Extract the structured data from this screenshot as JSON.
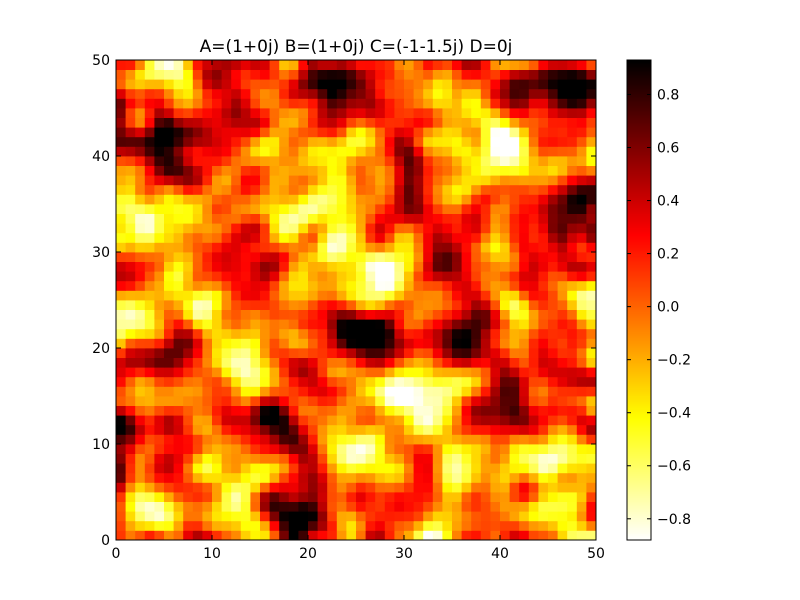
{
  "chart_data": {
    "type": "heatmap",
    "title": "A=(1+0j)  B=(1+0j)  C=(-1-1.5j)  D=0j",
    "xlabel": "",
    "ylabel": "",
    "xlim": [
      0,
      50
    ],
    "ylim": [
      0,
      50
    ],
    "grid_size": [
      50,
      50
    ],
    "colormap": "hot_r",
    "colorbar_range": [
      -0.88,
      0.93
    ],
    "x_ticks": [
      0,
      10,
      20,
      30,
      40,
      50
    ],
    "y_ticks": [
      0,
      10,
      20,
      30,
      40,
      50
    ],
    "colorbar_ticks": [
      -0.8,
      -0.6,
      -0.4,
      -0.2,
      0.0,
      0.2,
      0.4,
      0.6,
      0.8
    ],
    "colorbar_tick_labels": [
      "−0.8",
      "−0.6",
      "−0.4",
      "−0.2",
      "0.0",
      "0.2",
      "0.4",
      "0.6",
      "0.8"
    ],
    "hot_spots": [
      {
        "x": 4,
        "y": 40.5,
        "value": 0.93
      },
      {
        "x": 36.5,
        "y": 22,
        "value": 0.9
      },
      {
        "x": 18.5,
        "y": 3.5,
        "value": 0.8
      },
      {
        "x": 1.5,
        "y": 10,
        "value": 0.75
      },
      {
        "x": 48,
        "y": 48,
        "value": 0.8
      },
      {
        "x": 12.5,
        "y": 45,
        "value": 0.6
      },
      {
        "x": 27,
        "y": 21,
        "value": 0.65
      },
      {
        "x": 17,
        "y": 13,
        "value": 0.7
      },
      {
        "x": 39,
        "y": 13,
        "value": 0.65
      },
      {
        "x": 44,
        "y": 30.5,
        "value": 0.6
      },
      {
        "x": 35.5,
        "y": 30,
        "value": 0.6
      },
      {
        "x": 13,
        "y": 31,
        "value": 0.55
      },
      {
        "x": 22,
        "y": 47.5,
        "value": 0.65
      },
      {
        "x": 43,
        "y": 46,
        "value": 0.5
      },
      {
        "x": 45,
        "y": 17,
        "value": 0.45
      },
      {
        "x": 33,
        "y": 2.5,
        "value": 0.45
      },
      {
        "x": 6,
        "y": 20,
        "value": 0.45
      },
      {
        "x": 30,
        "y": 36.5,
        "value": 0.55
      },
      {
        "x": 48,
        "y": 34,
        "value": 0.5
      },
      {
        "x": 22,
        "y": 22,
        "value": 0.5
      }
    ],
    "cold_spots": [
      {
        "x": 5,
        "y": 48.5,
        "value": -0.85
      },
      {
        "x": 40.5,
        "y": 41,
        "value": -0.85
      },
      {
        "x": 31,
        "y": 14.5,
        "value": -0.8
      },
      {
        "x": 33,
        "y": 1.5,
        "value": -0.8
      },
      {
        "x": 28,
        "y": 27.5,
        "value": -0.75
      },
      {
        "x": 8.5,
        "y": 24.5,
        "value": -0.7
      },
      {
        "x": 4,
        "y": 33,
        "value": -0.7
      },
      {
        "x": 45,
        "y": 9,
        "value": -0.7
      },
      {
        "x": 35.5,
        "y": 9.5,
        "value": -0.65
      },
      {
        "x": 3.5,
        "y": 3.5,
        "value": -0.65
      },
      {
        "x": 16,
        "y": 34,
        "value": -0.6
      },
      {
        "x": 24.5,
        "y": 8,
        "value": -0.6
      },
      {
        "x": 40.5,
        "y": 31,
        "value": -0.6
      },
      {
        "x": 13,
        "y": 18.5,
        "value": -0.55
      },
      {
        "x": 21,
        "y": 39,
        "value": -0.55
      },
      {
        "x": 48,
        "y": 25,
        "value": -0.5
      },
      {
        "x": 47,
        "y": 2,
        "value": -0.6
      }
    ]
  }
}
